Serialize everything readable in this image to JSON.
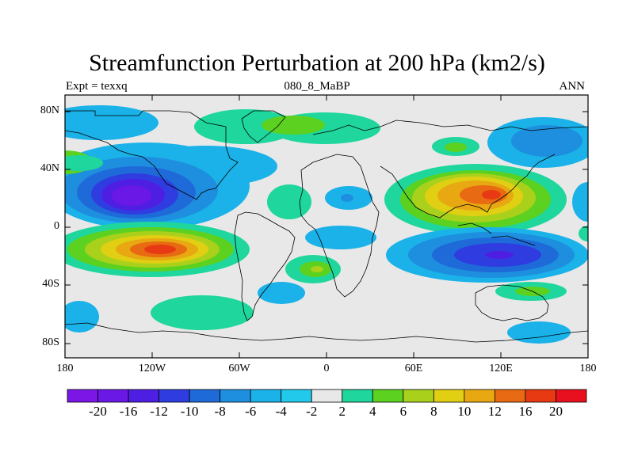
{
  "title": "Streamfunction Perturbation at 200 hPa (km2/s)",
  "subtitle_left": "Expt = texxq",
  "subtitle_center": "080_8_MaBP",
  "subtitle_right": "ANN",
  "lat_ticks": [
    "80N",
    "40N",
    "0",
    "40S",
    "80S"
  ],
  "lon_ticks": [
    "180",
    "120W",
    "60W",
    "0",
    "60E",
    "120E",
    "180"
  ],
  "colorbar": {
    "labels": [
      "-20",
      "-16",
      "-12",
      "-10",
      "-8",
      "-6",
      "-4",
      "-2",
      "2",
      "4",
      "6",
      "8",
      "10",
      "12",
      "16",
      "20"
    ],
    "colors": [
      "#7b16e6",
      "#6a18e6",
      "#4e1fe3",
      "#2f3ce0",
      "#1f6ad9",
      "#1e8fde",
      "#1ab2e8",
      "#22c9ea",
      "#e8e8e8",
      "#1fd69c",
      "#5cd11f",
      "#a9d11c",
      "#e0cf12",
      "#e8a812",
      "#e86a12",
      "#e83a12",
      "#e8101f"
    ]
  },
  "chart_data": {
    "type": "contour_map",
    "projection": "cylindrical equidistant",
    "variable": "streamfunction perturbation",
    "units": "km2/s",
    "level": "200 hPa",
    "lat_range": [
      -90,
      90
    ],
    "lon_range": [
      -180,
      180
    ],
    "contour_levels": [
      -20,
      -16,
      -12,
      -10,
      -8,
      -6,
      -4,
      -2,
      2,
      4,
      6,
      8,
      10,
      12,
      16,
      20
    ],
    "features": [
      {
        "name": "negative center",
        "lon": -125,
        "lat": 22,
        "value": -18
      },
      {
        "name": "positive center",
        "lon": -115,
        "lat": -15,
        "value": 17
      },
      {
        "name": "positive center",
        "lon": 110,
        "lat": 22,
        "value": 16
      },
      {
        "name": "negative center",
        "lon": 120,
        "lat": -20,
        "value": -14
      },
      {
        "name": "positive band",
        "lon": -60,
        "lat": 70,
        "value": 4
      },
      {
        "name": "positive band",
        "lon": -110,
        "lat": -65,
        "value": 4
      },
      {
        "name": "negative band",
        "lon": -80,
        "lat": 42,
        "value": -6
      },
      {
        "name": "positive center",
        "lon": -15,
        "lat": 25,
        "value": 4
      },
      {
        "name": "positive center",
        "lon": -10,
        "lat": -30,
        "value": 6
      }
    ]
  }
}
